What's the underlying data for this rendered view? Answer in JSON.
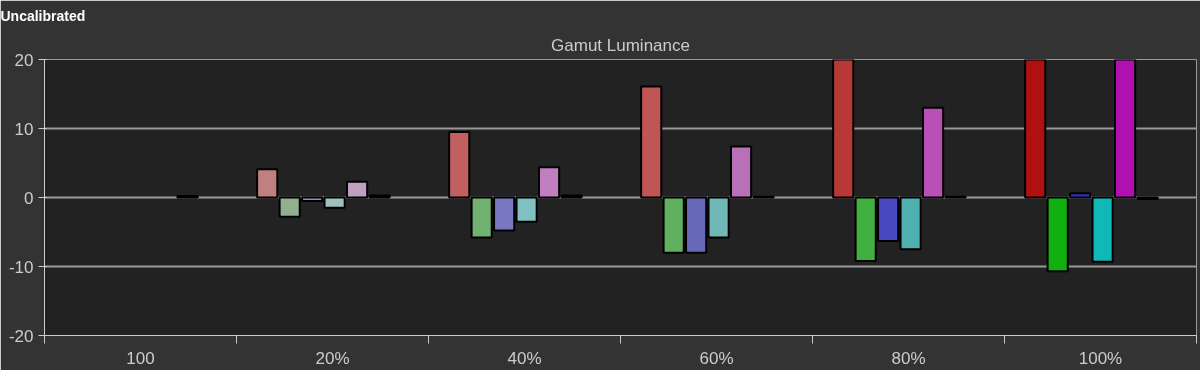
{
  "chart_data": {
    "type": "bar",
    "title": "Gamut Luminance",
    "subtitle": "Uncalibrated",
    "categories": [
      "100",
      "20%",
      "40%",
      "60%",
      "80%",
      "100%"
    ],
    "series": [
      {
        "colors": [
          "#c03030",
          "#c08080",
          "#c06060",
          "#c05555",
          "#b83838",
          "#b01010"
        ],
        "values": [
          null,
          4.1,
          9.5,
          16.1,
          20,
          20
        ]
      },
      {
        "colors": [
          "#20b020",
          "#90b090",
          "#70b070",
          "#60b060",
          "#40b040",
          "#10b010"
        ],
        "values": [
          null,
          -2.8,
          -5.8,
          -8.0,
          -9.2,
          -10.7
        ]
      },
      {
        "colors": [
          "#4040c0",
          "#9090c0",
          "#7878c0",
          "#6868b8",
          "#4848c0",
          "#3030c0"
        ],
        "values": [
          null,
          -0.5,
          -4.8,
          -8.0,
          -6.3,
          0.6
        ]
      },
      {
        "colors": [
          "#10b8b8",
          "#a0c0c0",
          "#80c0c0",
          "#70b8b8",
          "#50b0b0",
          "#10b8b8"
        ],
        "values": [
          null,
          -1.5,
          -3.5,
          -5.8,
          -7.5,
          -9.3
        ]
      },
      {
        "colors": [
          "#b010b0",
          "#c0a0c0",
          "#c080c0",
          "#b870b8",
          "#b850b8",
          "#b010b0"
        ],
        "values": [
          null,
          2.3,
          4.4,
          7.4,
          13.0,
          20
        ]
      },
      {
        "colors": [
          "#000000",
          "#000000",
          "#000000",
          "#000000",
          "#000000",
          "#000000"
        ],
        "values": [
          0.2,
          0.3,
          0.3,
          0.1,
          0.1,
          -0.2
        ]
      }
    ],
    "ylim": [
      -20,
      20
    ],
    "yticks": [
      -20,
      -10,
      0,
      10,
      20
    ],
    "grid": "y"
  }
}
